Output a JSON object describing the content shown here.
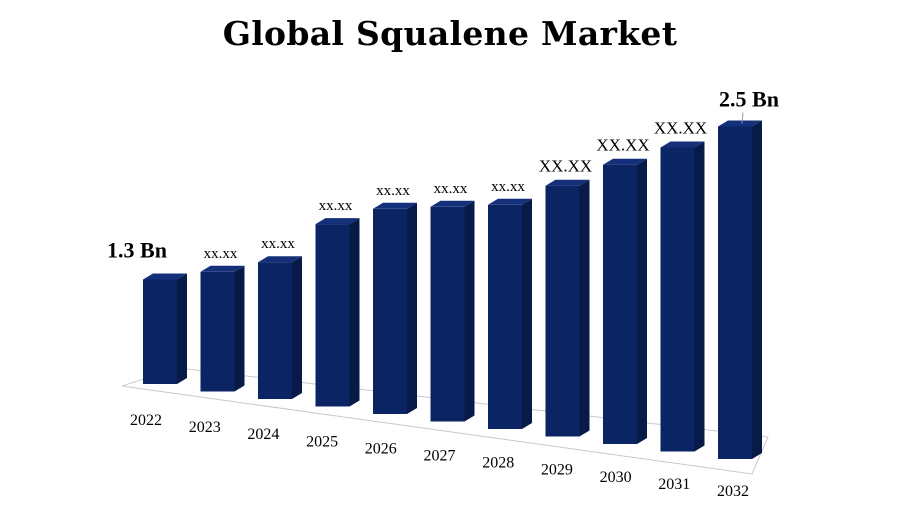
{
  "chart_data": {
    "type": "bar",
    "title": "Global Squalene Market",
    "categories": [
      "2022",
      "2023",
      "2024",
      "2025",
      "2026",
      "2027",
      "2028",
      "2029",
      "2030",
      "2031",
      "2032"
    ],
    "values": [
      1.3,
      1.38,
      1.47,
      1.71,
      1.83,
      1.88,
      1.93,
      2.07,
      2.22,
      2.35,
      2.5
    ],
    "data_labels": [
      "1.3 Bn",
      "xx.xx",
      "xx.xx",
      "xx.xx",
      "xx.xx",
      "xx.xx",
      "xx.xx",
      "XX.XX",
      "XX.XX",
      "XX.XX",
      "2.5 Bn"
    ],
    "xlabel": "",
    "ylabel": "",
    "grid": false,
    "legend": "none",
    "bar_color": "#0b2463",
    "bar_side_color": "#081a47",
    "bar_top_color": "#14307a"
  }
}
